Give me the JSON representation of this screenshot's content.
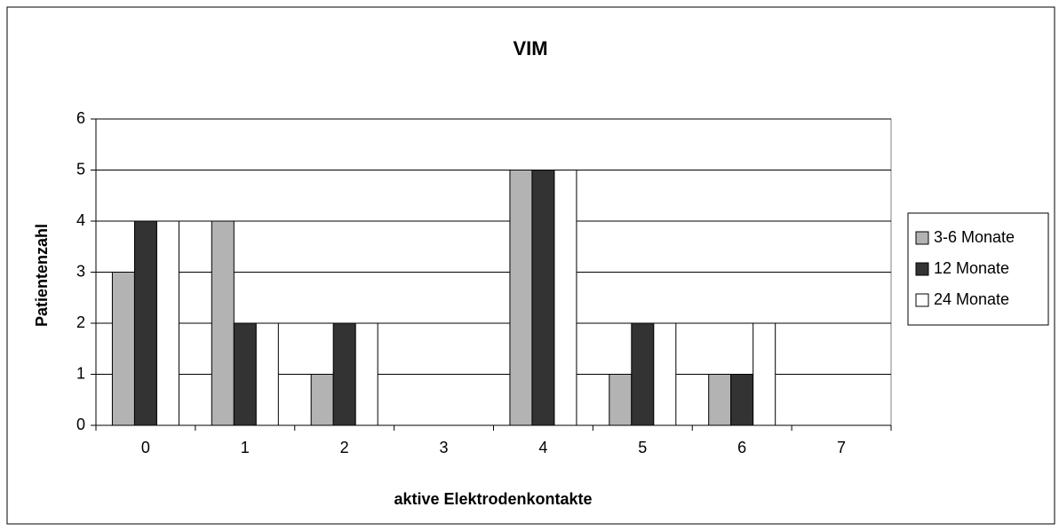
{
  "chart_data": {
    "type": "bar",
    "title": "VIM",
    "x_label": "aktive Elektrodenkontakte",
    "y_label": "Patientenzahl",
    "categories": [
      "0",
      "1",
      "2",
      "3",
      "4",
      "5",
      "6",
      "7"
    ],
    "series": [
      {
        "name": "3-6 Monate",
        "color": "#b3b3b3",
        "values": [
          3,
          4,
          1,
          0,
          5,
          1,
          1,
          0
        ]
      },
      {
        "name": "12 Monate",
        "color": "#333333",
        "values": [
          4,
          2,
          2,
          0,
          5,
          2,
          1,
          0
        ]
      },
      {
        "name": "24 Monate",
        "color": "#ffffff",
        "values": [
          4,
          2,
          2,
          0,
          5,
          2,
          2,
          0
        ]
      }
    ],
    "ylim": [
      0,
      6
    ],
    "yticks": [
      0,
      1,
      2,
      3,
      4,
      5,
      6
    ],
    "grid": true,
    "legend": "right"
  }
}
